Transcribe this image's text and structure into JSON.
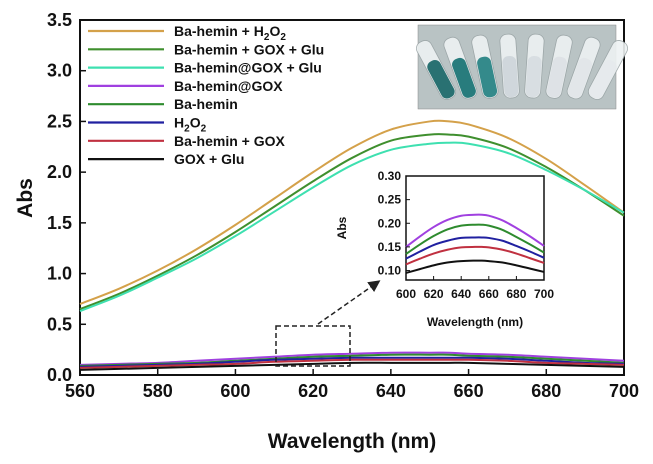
{
  "chart_data": [
    {
      "type": "line",
      "xlabel": "Wavelength (nm)",
      "ylabel": "Abs",
      "xlim": [
        560,
        700
      ],
      "ylim": [
        0.0,
        3.5
      ],
      "xticks": [
        "560",
        "580",
        "600",
        "620",
        "640",
        "660",
        "680",
        "700"
      ],
      "yticks": [
        "0.0",
        "0.5",
        "1.0",
        "1.5",
        "2.0",
        "2.5",
        "3.0",
        "3.5"
      ],
      "legend_position": "top-left",
      "x": [
        560,
        570,
        580,
        590,
        600,
        610,
        620,
        630,
        640,
        650,
        655,
        660,
        670,
        680,
        690,
        700
      ],
      "series": [
        {
          "name": "Ba-hemin + H2O2",
          "color": "#d4a14a",
          "values": [
            0.7,
            0.85,
            1.03,
            1.24,
            1.48,
            1.74,
            2.0,
            2.24,
            2.42,
            2.5,
            2.5,
            2.47,
            2.34,
            2.13,
            1.87,
            1.6
          ]
        },
        {
          "name": "Ba-hemin + GOX + Glu",
          "color": "#3f8f2e",
          "values": [
            0.65,
            0.8,
            0.98,
            1.18,
            1.41,
            1.66,
            1.91,
            2.14,
            2.31,
            2.37,
            2.37,
            2.35,
            2.24,
            2.05,
            1.82,
            1.57
          ]
        },
        {
          "name": "Ba-hemin@GOX + Glu",
          "color": "#3ee0b0",
          "values": [
            0.63,
            0.78,
            0.96,
            1.15,
            1.37,
            1.61,
            1.85,
            2.07,
            2.22,
            2.28,
            2.29,
            2.28,
            2.19,
            2.02,
            1.82,
            1.6
          ]
        },
        {
          "name": "Ba-hemin@GOX",
          "color": "#a040e0",
          "values": [
            0.1,
            0.11,
            0.12,
            0.14,
            0.16,
            0.18,
            0.2,
            0.21,
            0.22,
            0.22,
            0.22,
            0.21,
            0.2,
            0.18,
            0.16,
            0.14
          ]
        },
        {
          "name": "Ba-hemin",
          "color": "#2e8b2e",
          "values": [
            0.09,
            0.1,
            0.11,
            0.12,
            0.14,
            0.16,
            0.18,
            0.19,
            0.2,
            0.2,
            0.2,
            0.19,
            0.18,
            0.16,
            0.14,
            0.12
          ]
        },
        {
          "name": "H2O2",
          "color": "#2020a0",
          "values": [
            0.08,
            0.09,
            0.1,
            0.11,
            0.13,
            0.15,
            0.16,
            0.17,
            0.17,
            0.17,
            0.17,
            0.17,
            0.16,
            0.14,
            0.12,
            0.11
          ]
        },
        {
          "name": "Ba-hemin + GOX",
          "color": "#c03040",
          "values": [
            0.07,
            0.08,
            0.09,
            0.1,
            0.11,
            0.13,
            0.14,
            0.15,
            0.15,
            0.15,
            0.15,
            0.15,
            0.14,
            0.12,
            0.11,
            0.1
          ]
        },
        {
          "name": "GOX + Glu",
          "color": "#111111",
          "values": [
            0.05,
            0.06,
            0.07,
            0.08,
            0.09,
            0.1,
            0.11,
            0.12,
            0.12,
            0.12,
            0.12,
            0.12,
            0.11,
            0.1,
            0.09,
            0.08
          ]
        }
      ]
    },
    {
      "type": "line",
      "inset": true,
      "xlabel": "Wavelength (nm)",
      "ylabel": "Abs",
      "xlim": [
        600,
        700
      ],
      "ylim": [
        0.08,
        0.3
      ],
      "xticks": [
        "600",
        "620",
        "640",
        "660",
        "680",
        "700"
      ],
      "yticks": [
        "0.10",
        "0.15",
        "0.20",
        "0.25",
        "0.30"
      ],
      "x": [
        600,
        610,
        620,
        630,
        640,
        650,
        655,
        660,
        670,
        680,
        690,
        700
      ],
      "series": [
        {
          "name": "Ba-hemin@GOX",
          "color": "#a040e0",
          "values": [
            0.15,
            0.172,
            0.192,
            0.207,
            0.216,
            0.218,
            0.218,
            0.216,
            0.206,
            0.19,
            0.172,
            0.152
          ]
        },
        {
          "name": "Ba-hemin",
          "color": "#2e8b2e",
          "values": [
            0.135,
            0.155,
            0.173,
            0.187,
            0.195,
            0.197,
            0.197,
            0.195,
            0.186,
            0.171,
            0.155,
            0.138
          ]
        },
        {
          "name": "H2O2",
          "color": "#2020a0",
          "values": [
            0.125,
            0.14,
            0.154,
            0.163,
            0.169,
            0.17,
            0.17,
            0.169,
            0.163,
            0.152,
            0.14,
            0.127
          ]
        },
        {
          "name": "Ba-hemin + GOX",
          "color": "#c03040",
          "values": [
            0.113,
            0.125,
            0.136,
            0.144,
            0.149,
            0.15,
            0.15,
            0.149,
            0.144,
            0.136,
            0.126,
            0.116
          ]
        },
        {
          "name": "GOX + Glu",
          "color": "#111111",
          "values": [
            0.095,
            0.103,
            0.111,
            0.117,
            0.12,
            0.121,
            0.121,
            0.12,
            0.117,
            0.111,
            0.104,
            0.097
          ]
        }
      ]
    }
  ],
  "photo": {
    "tubes": [
      {
        "color": "#1f6a6a"
      },
      {
        "color": "#1e7676"
      },
      {
        "color": "#2a8585"
      },
      {
        "color": "#cfd6da"
      },
      {
        "color": "#d7dde0"
      },
      {
        "color": "#dde2e5"
      },
      {
        "color": "#e2e6e8"
      },
      {
        "color": "#e6eaec"
      }
    ]
  }
}
